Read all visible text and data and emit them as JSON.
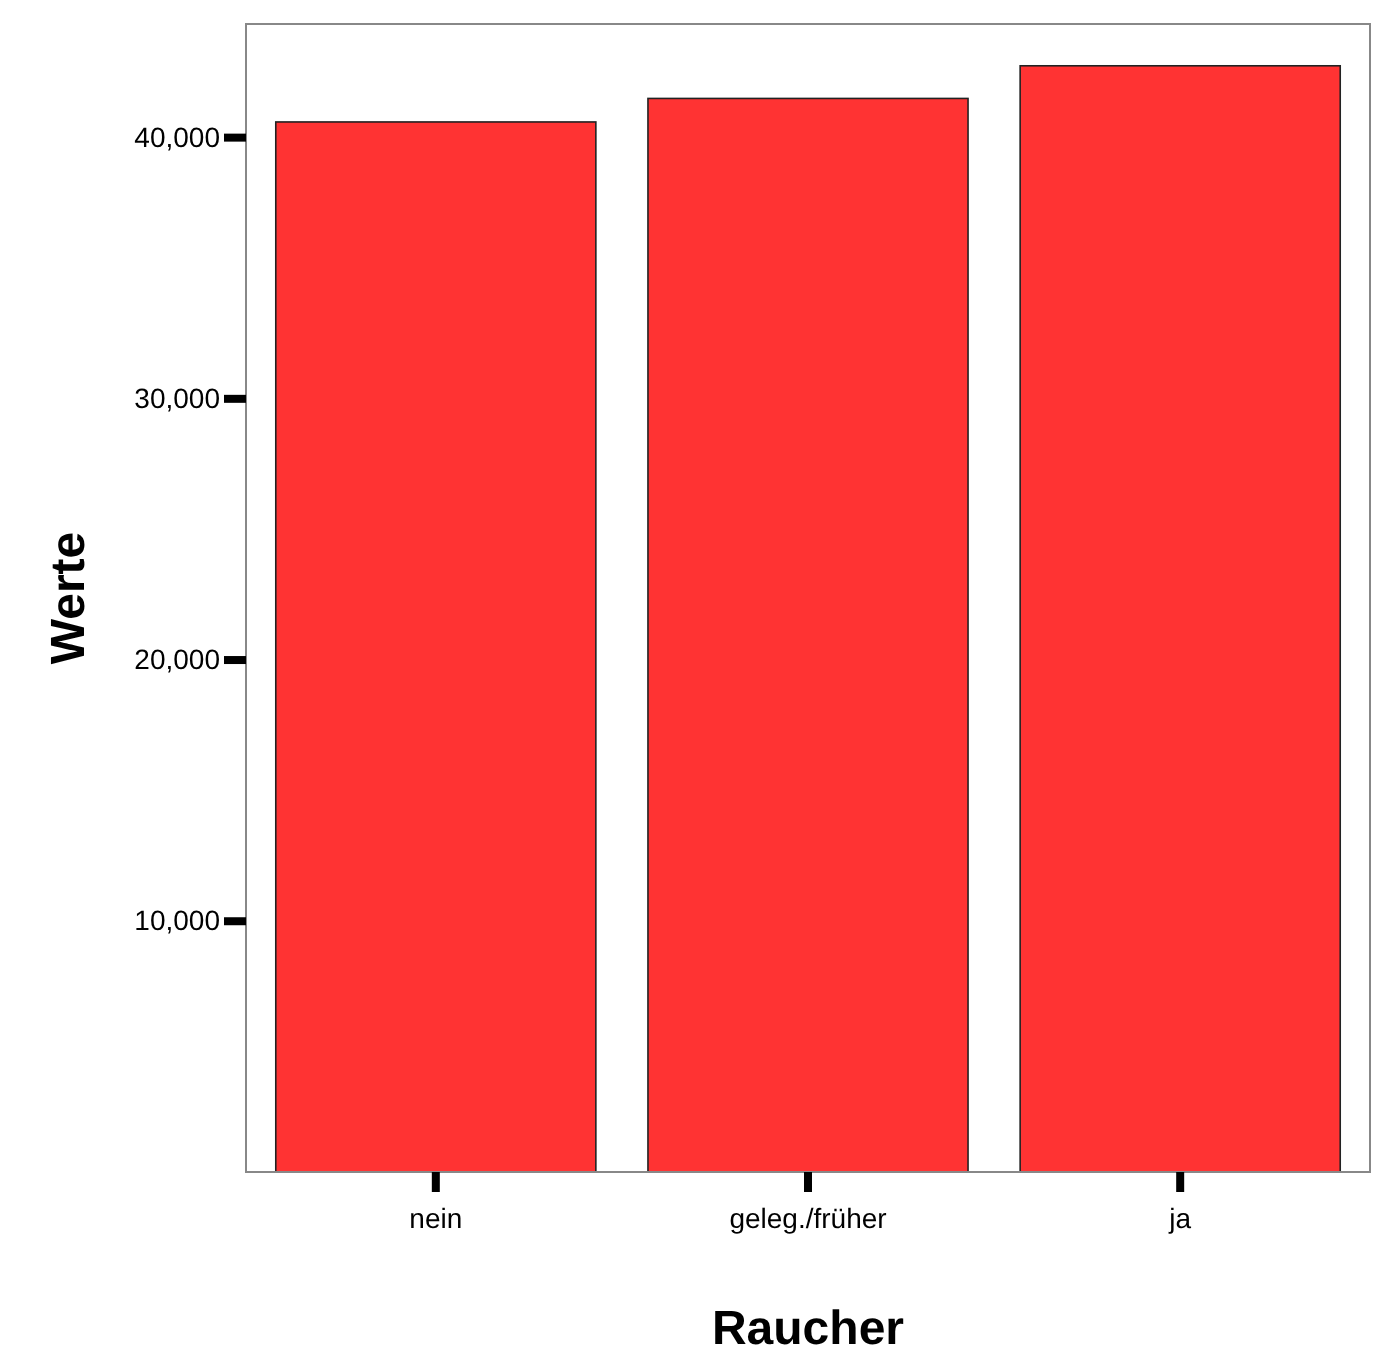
{
  "chart_data": {
    "type": "bar",
    "xlabel": "Raucher",
    "ylabel": "Werte",
    "categories": [
      "nein",
      "geleg./früher",
      "ja"
    ],
    "values": [
      40600,
      41500,
      42750
    ],
    "color": "#ff3333",
    "ylim": [
      400,
      44350
    ],
    "yticks": [
      {
        "value": 10000,
        "label": "10,000"
      },
      {
        "value": 20000,
        "label": "20,000"
      },
      {
        "value": 30000,
        "label": "30,000"
      },
      {
        "value": 40000,
        "label": "40,000"
      }
    ],
    "grid": false
  }
}
